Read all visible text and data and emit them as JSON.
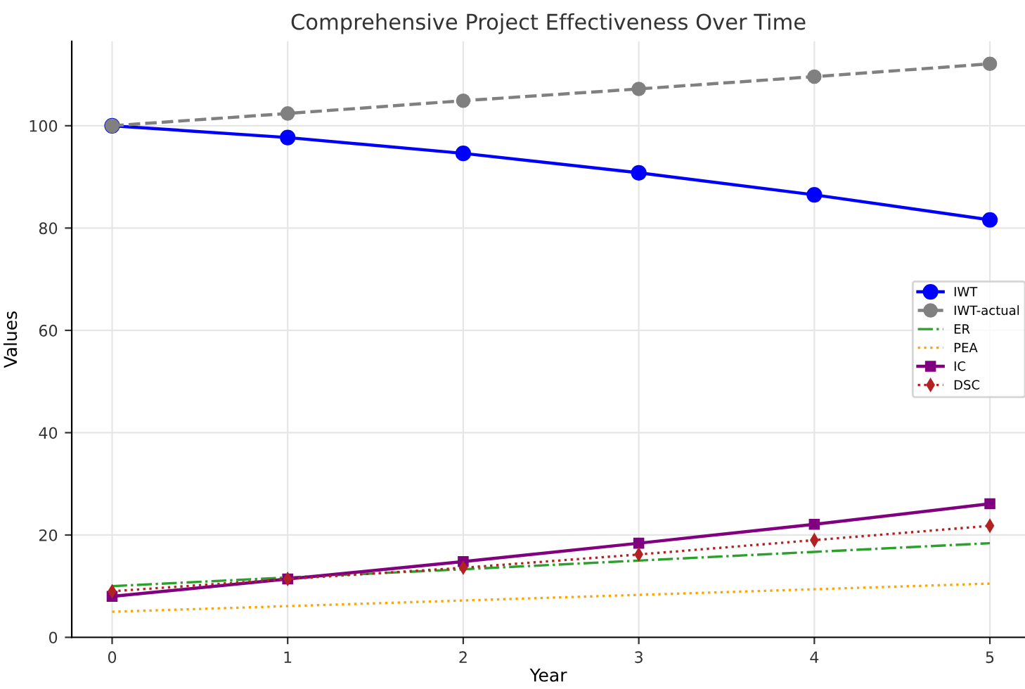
{
  "chart_data": {
    "type": "line",
    "title": "Comprehensive Project Effectiveness Over Time",
    "xlabel": "Year",
    "ylabel": "Values",
    "x": [
      0,
      1,
      2,
      3,
      4,
      5
    ],
    "xlim": [
      -0.23,
      5.2
    ],
    "xticks": [
      0,
      1,
      2,
      3,
      4,
      5
    ],
    "ylim": [
      0,
      116.5
    ],
    "yticks": [
      0,
      20,
      40,
      60,
      80,
      100
    ],
    "grid": true,
    "legend": "right",
    "series": [
      {
        "name": "IWT",
        "color": "#0000ff",
        "values": [
          100,
          97.7,
          94.6,
          90.8,
          86.5,
          81.6
        ],
        "marker": "circle",
        "line_style": "solid"
      },
      {
        "name": "IWT-actual",
        "color": "#808080",
        "values": [
          100,
          102.4,
          104.9,
          107.2,
          109.6,
          112.1
        ],
        "marker": "circle",
        "line_style": "dashed"
      },
      {
        "name": "ER",
        "color": "#2ca02c",
        "values": [
          10,
          11.7,
          13.3,
          15,
          16.7,
          18.4
        ],
        "marker": "none",
        "line_style": "dashdot"
      },
      {
        "name": "PEA",
        "color": "#ffa500",
        "values": [
          5,
          6.1,
          7.2,
          8.3,
          9.4,
          10.5
        ],
        "marker": "none",
        "line_style": "dotted"
      },
      {
        "name": "IC",
        "color": "#800080",
        "values": [
          8,
          11.4,
          14.8,
          18.4,
          22.1,
          26.1
        ],
        "marker": "square",
        "line_style": "solid"
      },
      {
        "name": "DSC",
        "color": "#b22222",
        "values": [
          9,
          11.4,
          13.6,
          16.2,
          19,
          21.8
        ],
        "marker": "diamond",
        "line_style": "dotted"
      }
    ]
  }
}
